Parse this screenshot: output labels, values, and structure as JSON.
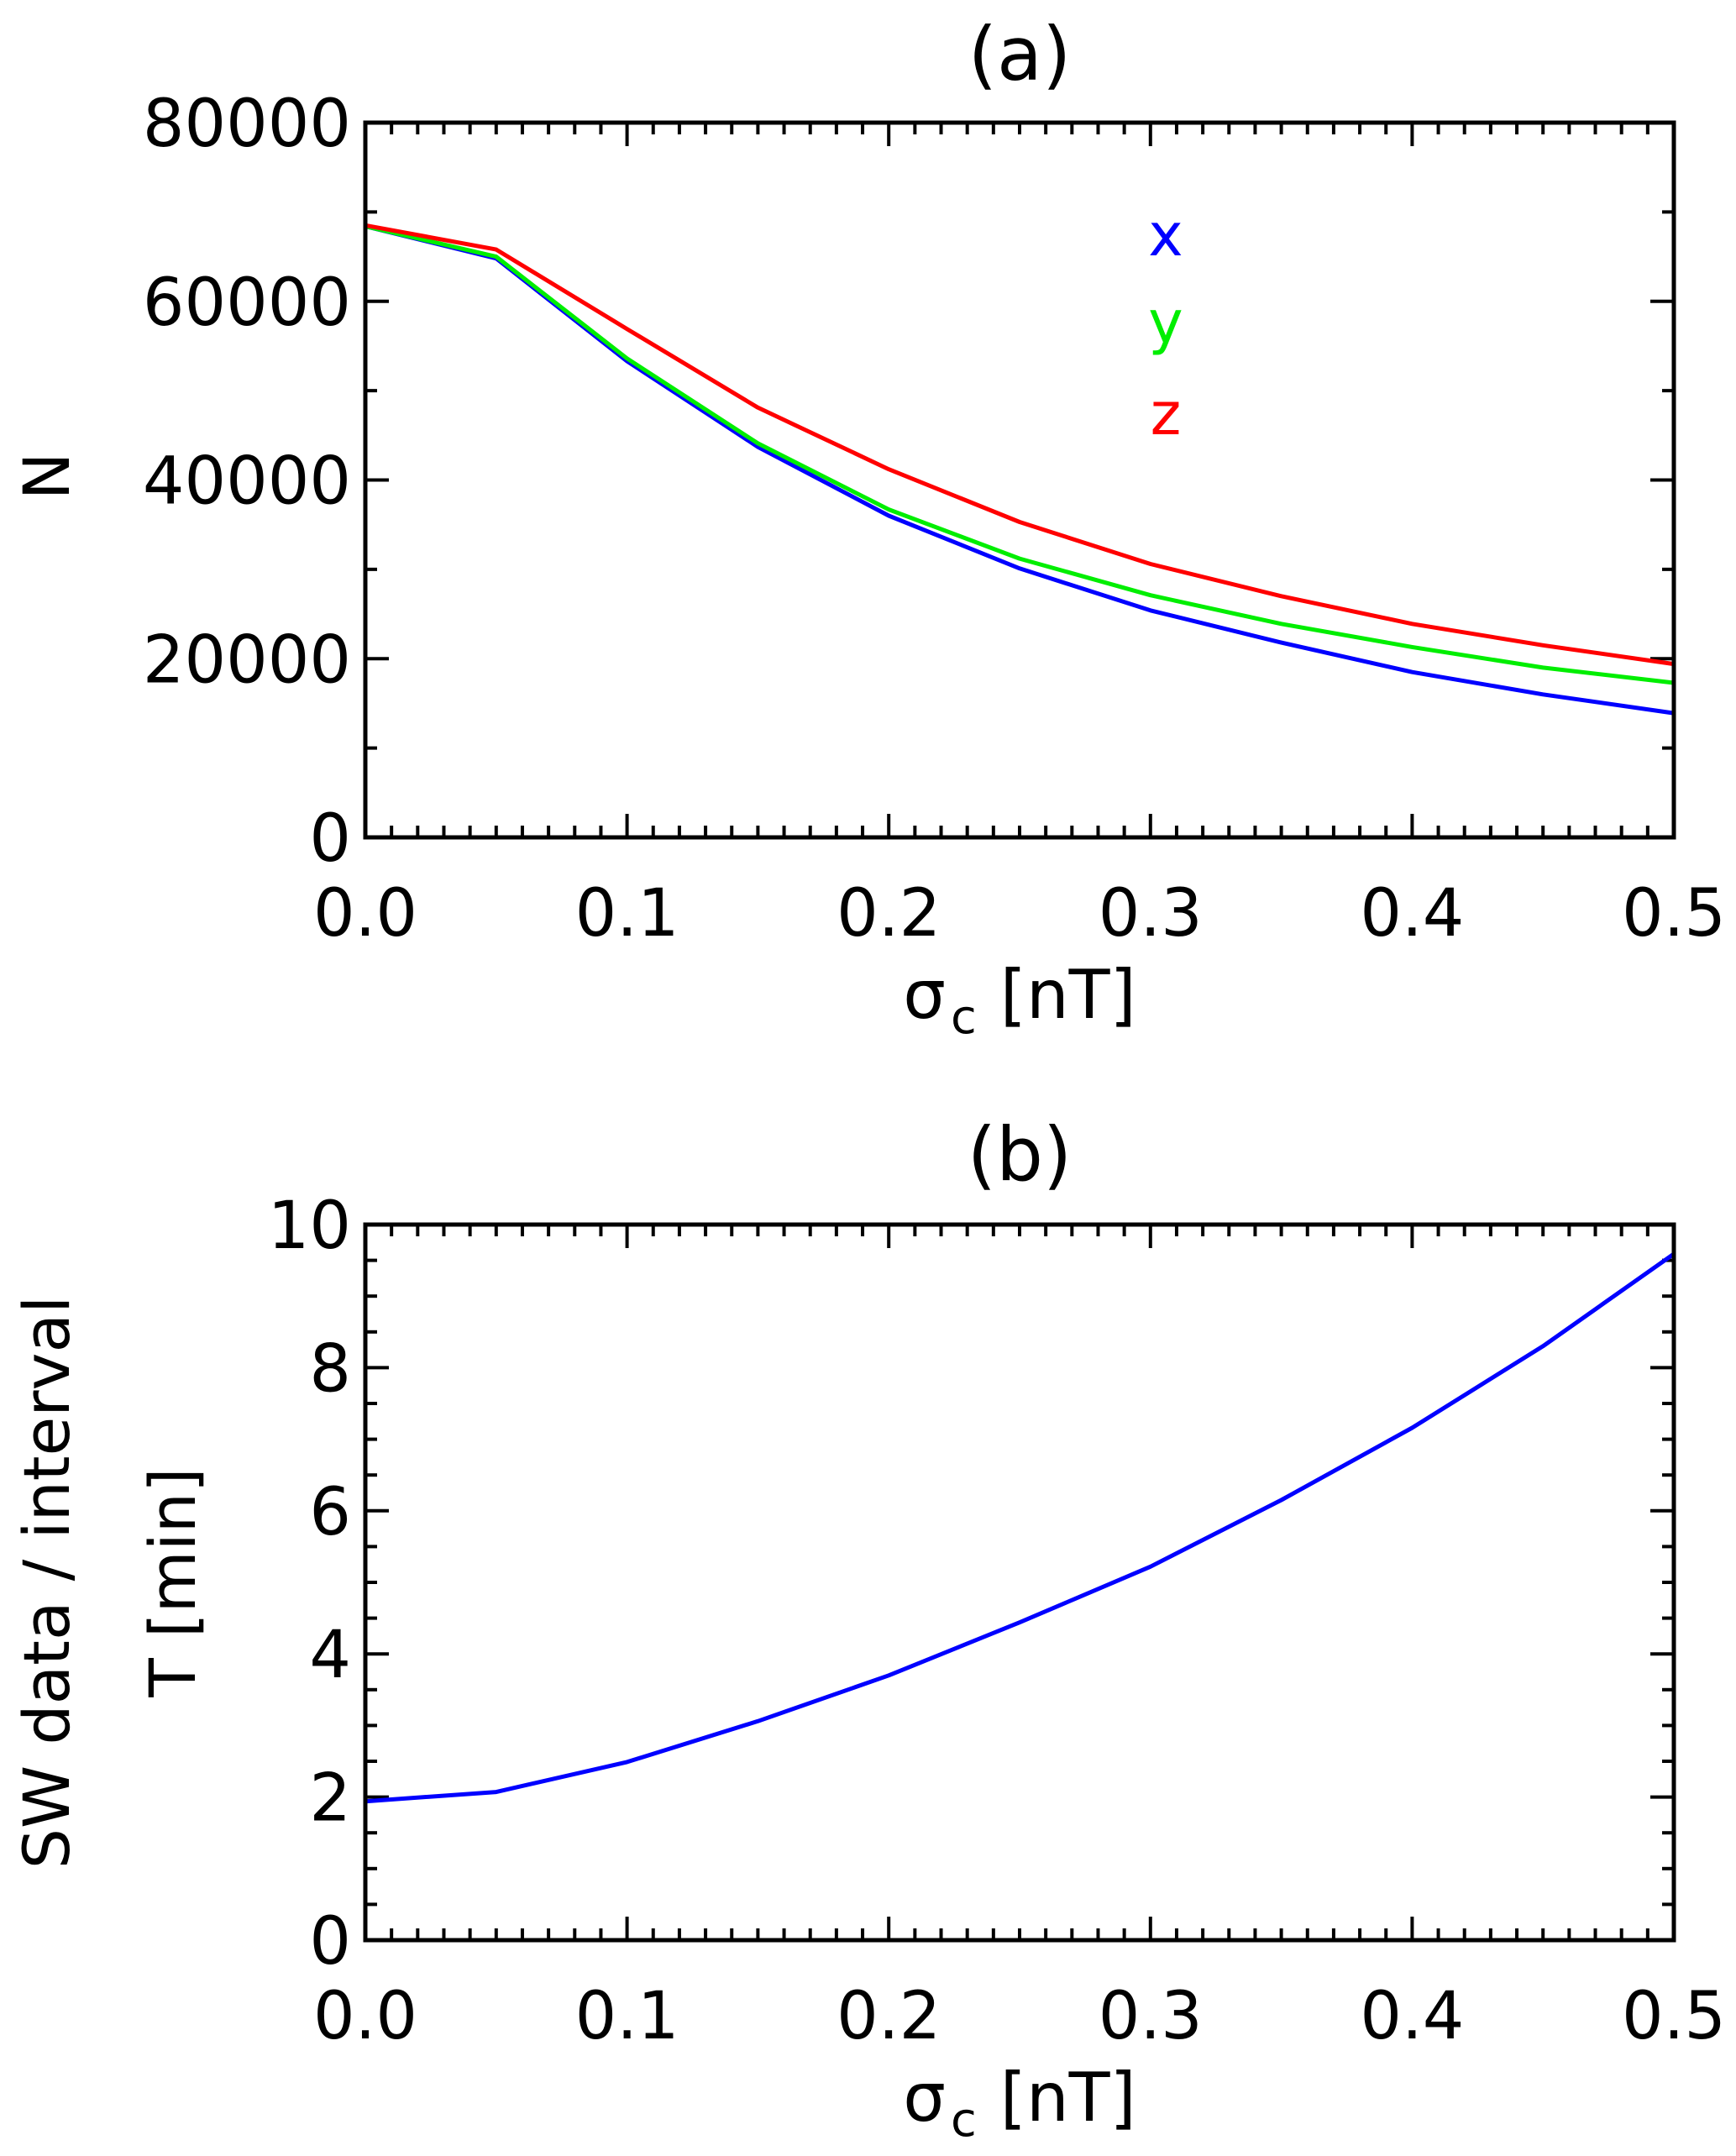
{
  "chart_data": [
    {
      "type": "line",
      "title": "(a)",
      "xlabel": {
        "symbol": "σ",
        "subscript": "c",
        "unit": "[nT]"
      },
      "ylabel": "N",
      "xlim": [
        0.0,
        0.5
      ],
      "ylim": [
        0,
        80000
      ],
      "x_ticks": [
        0.0,
        0.1,
        0.2,
        0.3,
        0.4,
        0.5
      ],
      "x_tick_labels": [
        "0.0",
        "0.1",
        "0.2",
        "0.3",
        "0.4",
        "0.5"
      ],
      "x_minor_step": 0.01,
      "y_ticks": [
        0,
        20000,
        40000,
        60000,
        80000
      ],
      "y_tick_labels": [
        "0",
        "20000",
        "40000",
        "60000",
        "80000"
      ],
      "y_minor_step": 10000,
      "grid": false,
      "legend_position": "top-center-right",
      "x": [
        0.0,
        0.05,
        0.1,
        0.15,
        0.2,
        0.25,
        0.3,
        0.35,
        0.4,
        0.45,
        0.5
      ],
      "series": [
        {
          "name": "x",
          "color": "#0000ff",
          "values": [
            68400,
            64800,
            53300,
            43700,
            36000,
            30100,
            25400,
            21800,
            18500,
            16000,
            13900
          ]
        },
        {
          "name": "y",
          "color": "#00ee00",
          "values": [
            68400,
            65000,
            53600,
            44100,
            36700,
            31200,
            27100,
            23900,
            21300,
            19000,
            17300
          ]
        },
        {
          "name": "z",
          "color": "#ff0000",
          "values": [
            68500,
            65800,
            56900,
            48100,
            41200,
            35300,
            30600,
            27000,
            23900,
            21500,
            19400
          ]
        }
      ]
    },
    {
      "type": "line",
      "title": "(b)",
      "xlabel": {
        "symbol": "σ",
        "subscript": "c",
        "unit": "[nT]"
      },
      "ylabel": [
        "SW data / interval",
        "T [min]"
      ],
      "xlim": [
        0.0,
        0.5
      ],
      "ylim": [
        0,
        10
      ],
      "x_ticks": [
        0.0,
        0.1,
        0.2,
        0.3,
        0.4,
        0.5
      ],
      "x_tick_labels": [
        "0.0",
        "0.1",
        "0.2",
        "0.3",
        "0.4",
        "0.5"
      ],
      "x_minor_step": 0.01,
      "y_ticks": [
        0,
        2,
        4,
        6,
        8,
        10
      ],
      "y_tick_labels": [
        "0",
        "2",
        "4",
        "6",
        "8",
        "10"
      ],
      "y_minor_step": 0.5,
      "grid": false,
      "x": [
        0.0,
        0.05,
        0.1,
        0.15,
        0.2,
        0.25,
        0.3,
        0.35,
        0.4,
        0.45,
        0.5
      ],
      "series": [
        {
          "name": "T",
          "color": "#0000ff",
          "values": [
            1.94,
            2.07,
            2.49,
            3.06,
            3.7,
            4.44,
            5.22,
            6.15,
            7.16,
            8.3,
            9.59
          ]
        }
      ]
    }
  ]
}
